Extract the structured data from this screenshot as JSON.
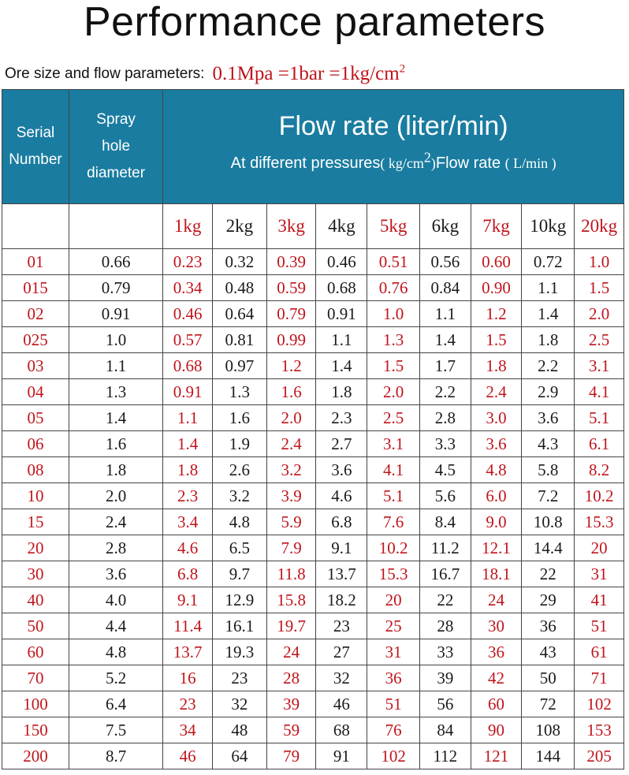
{
  "title": "Performance parameters",
  "subtitle": {
    "label": "Ore size and flow parameters:",
    "formula": "0.1Mpa =1bar =1kg/cm",
    "formula_sup": "2"
  },
  "colors": {
    "header_bg": "#1a7ca0",
    "accent_red": "#c0141c"
  },
  "header": {
    "serial": [
      "Serial",
      "Number"
    ],
    "spray": [
      "Spray",
      "hole",
      "diameter"
    ],
    "flow_title": "Flow rate (liter/min)",
    "flow_sub_a": "At different pressures",
    "flow_sub_b": "( kg/cm",
    "flow_sub_sup": "2",
    "flow_sub_c": ")",
    "flow_sub_d": "Flow rate",
    "flow_sub_e": "( L/min )"
  },
  "pressures": [
    "1kg",
    "2kg",
    "3kg",
    "4kg",
    "5kg",
    "6kg",
    "7kg",
    "10kg",
    "20kg"
  ],
  "rows": [
    {
      "serial": "01",
      "diameter": "0.66",
      "values": [
        "0.23",
        "0.32",
        "0.39",
        "0.46",
        "0.51",
        "0.56",
        "0.60",
        "0.72",
        "1.0"
      ]
    },
    {
      "serial": "015",
      "diameter": "0.79",
      "values": [
        "0.34",
        "0.48",
        "0.59",
        "0.68",
        "0.76",
        "0.84",
        "0.90",
        "1.1",
        "1.5"
      ]
    },
    {
      "serial": "02",
      "diameter": "0.91",
      "values": [
        "0.46",
        "0.64",
        "0.79",
        "0.91",
        "1.0",
        "1.1",
        "1.2",
        "1.4",
        "2.0"
      ]
    },
    {
      "serial": "025",
      "diameter": "1.0",
      "values": [
        "0.57",
        "0.81",
        "0.99",
        "1.1",
        "1.3",
        "1.4",
        "1.5",
        "1.8",
        "2.5"
      ]
    },
    {
      "serial": "03",
      "diameter": "1.1",
      "values": [
        "0.68",
        "0.97",
        "1.2",
        "1.4",
        "1.5",
        "1.7",
        "1.8",
        "2.2",
        "3.1"
      ]
    },
    {
      "serial": "04",
      "diameter": "1.3",
      "values": [
        "0.91",
        "1.3",
        "1.6",
        "1.8",
        "2.0",
        "2.2",
        "2.4",
        "2.9",
        "4.1"
      ]
    },
    {
      "serial": "05",
      "diameter": "1.4",
      "values": [
        "1.1",
        "1.6",
        "2.0",
        "2.3",
        "2.5",
        "2.8",
        "3.0",
        "3.6",
        "5.1"
      ]
    },
    {
      "serial": "06",
      "diameter": "1.6",
      "values": [
        "1.4",
        "1.9",
        "2.4",
        "2.7",
        "3.1",
        "3.3",
        "3.6",
        "4.3",
        "6.1"
      ]
    },
    {
      "serial": "08",
      "diameter": "1.8",
      "values": [
        "1.8",
        "2.6",
        "3.2",
        "3.6",
        "4.1",
        "4.5",
        "4.8",
        "5.8",
        "8.2"
      ]
    },
    {
      "serial": "10",
      "diameter": "2.0",
      "values": [
        "2.3",
        "3.2",
        "3.9",
        "4.6",
        "5.1",
        "5.6",
        "6.0",
        "7.2",
        "10.2"
      ]
    },
    {
      "serial": "15",
      "diameter": "2.4",
      "values": [
        "3.4",
        "4.8",
        "5.9",
        "6.8",
        "7.6",
        "8.4",
        "9.0",
        "10.8",
        "15.3"
      ]
    },
    {
      "serial": "20",
      "diameter": "2.8",
      "values": [
        "4.6",
        "6.5",
        "7.9",
        "9.1",
        "10.2",
        "11.2",
        "12.1",
        "14.4",
        "20"
      ]
    },
    {
      "serial": "30",
      "diameter": "3.6",
      "values": [
        "6.8",
        "9.7",
        "11.8",
        "13.7",
        "15.3",
        "16.7",
        "18.1",
        "22",
        "31"
      ]
    },
    {
      "serial": "40",
      "diameter": "4.0",
      "values": [
        "9.1",
        "12.9",
        "15.8",
        "18.2",
        "20",
        "22",
        "24",
        "29",
        "41"
      ]
    },
    {
      "serial": "50",
      "diameter": "4.4",
      "values": [
        "11.4",
        "16.1",
        "19.7",
        "23",
        "25",
        "28",
        "30",
        "36",
        "51"
      ]
    },
    {
      "serial": "60",
      "diameter": "4.8",
      "values": [
        "13.7",
        "19.3",
        "24",
        "27",
        "31",
        "33",
        "36",
        "43",
        "61"
      ]
    },
    {
      "serial": "70",
      "diameter": "5.2",
      "values": [
        "16",
        "23",
        "28",
        "32",
        "36",
        "39",
        "42",
        "50",
        "71"
      ]
    },
    {
      "serial": "100",
      "diameter": "6.4",
      "values": [
        "23",
        "32",
        "39",
        "46",
        "51",
        "56",
        "60",
        "72",
        "102"
      ]
    },
    {
      "serial": "150",
      "diameter": "7.5",
      "values": [
        "34",
        "48",
        "59",
        "68",
        "76",
        "84",
        "90",
        "108",
        "153"
      ]
    },
    {
      "serial": "200",
      "diameter": "8.7",
      "values": [
        "46",
        "64",
        "79",
        "91",
        "102",
        "112",
        "121",
        "144",
        "205"
      ]
    }
  ]
}
